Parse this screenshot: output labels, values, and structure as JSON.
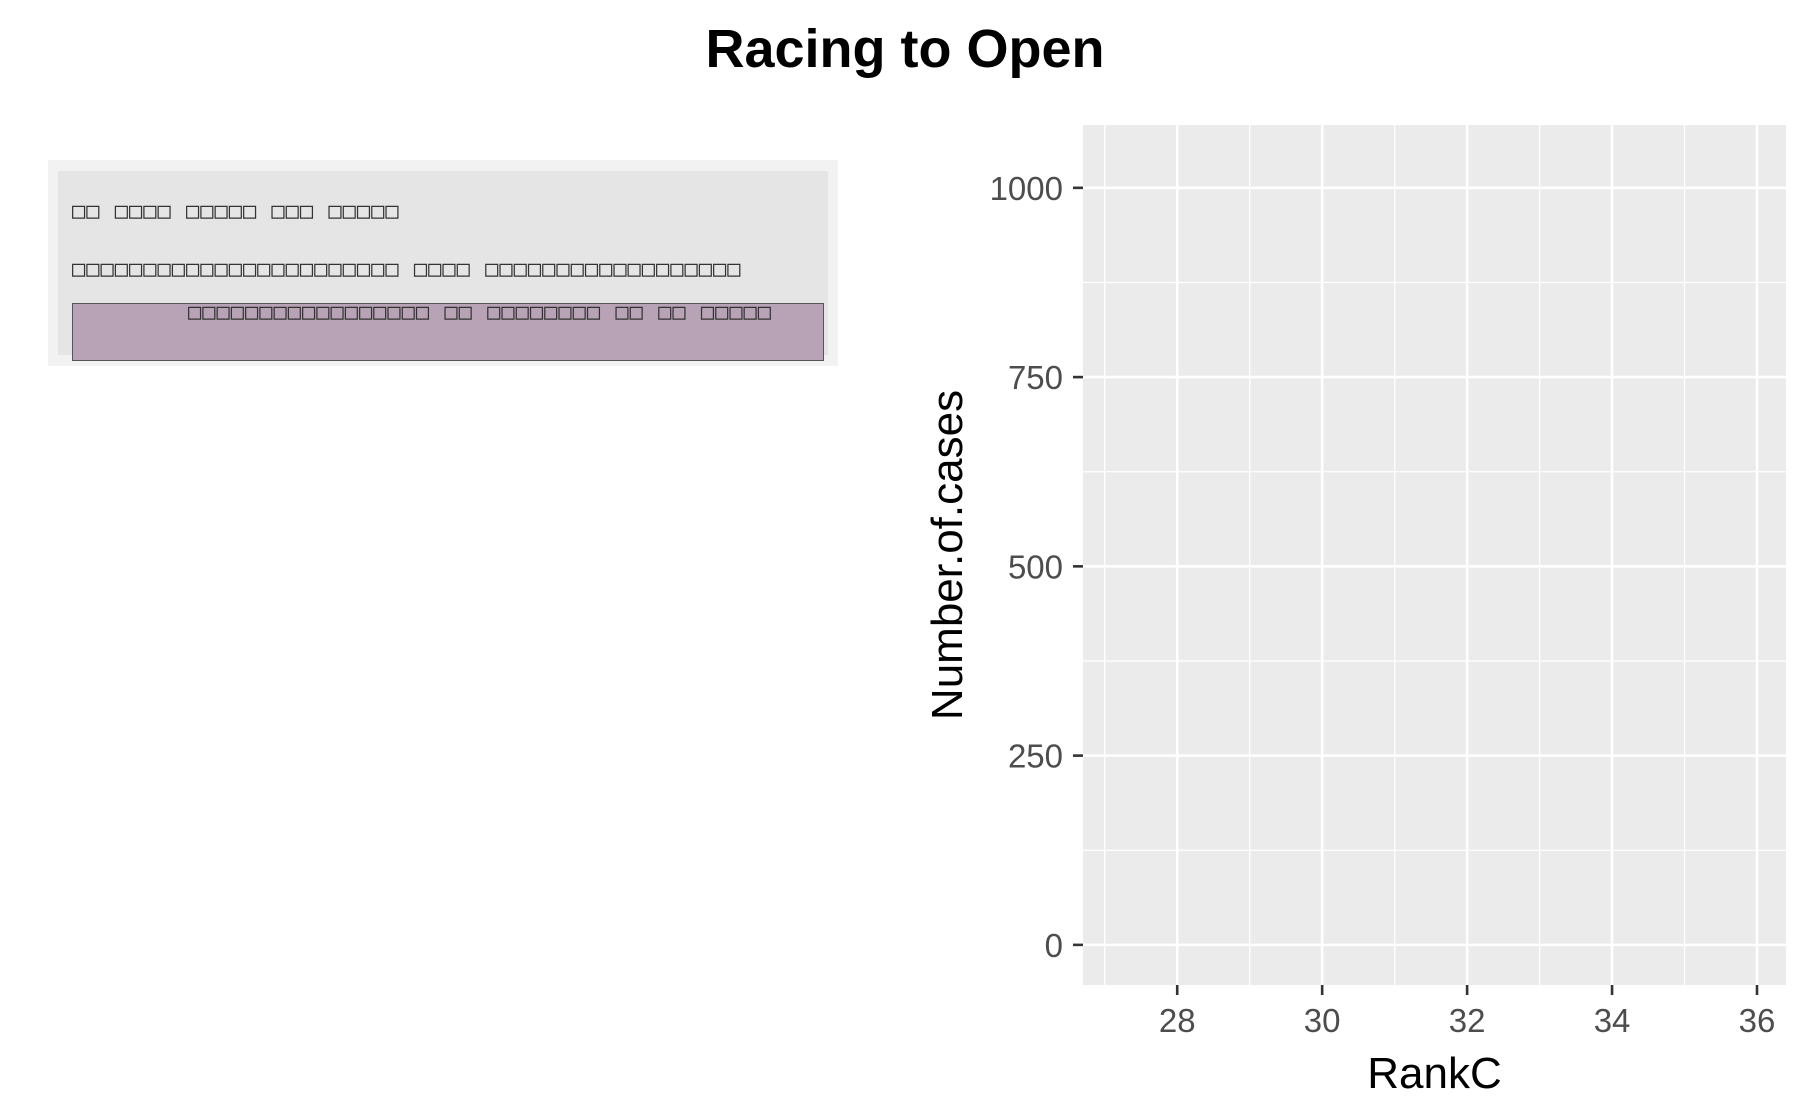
{
  "chart_data": {
    "type": "scatter",
    "title": "Racing to Open",
    "xlabel": "RankC",
    "ylabel": "Number.of.cases",
    "xlim": [
      26.7,
      36.4
    ],
    "ylim": [
      -53,
      1083
    ],
    "x_ticks": [
      28,
      30,
      32,
      34,
      36
    ],
    "y_ticks": [
      0,
      250,
      500,
      750,
      1000
    ],
    "grid": true,
    "series": [],
    "colors": {
      "panel": "#ebebeb",
      "grid": "#ffffff",
      "tick": "#333333",
      "highlight": "#b8a3b6"
    }
  },
  "code_box": {
    "line1": "□□ □□□□ □□□□□ □□□ □□□□□",
    "line2": "□□□□□□□□□□□□□□□□□□□□□□□ □□□□ □□□□□□□□□□□□□□□□□□",
    "line3": "□□□□□□□□□□□□□□□□□ □□ □□□□□□□□ □□ □□ □□□□□"
  }
}
